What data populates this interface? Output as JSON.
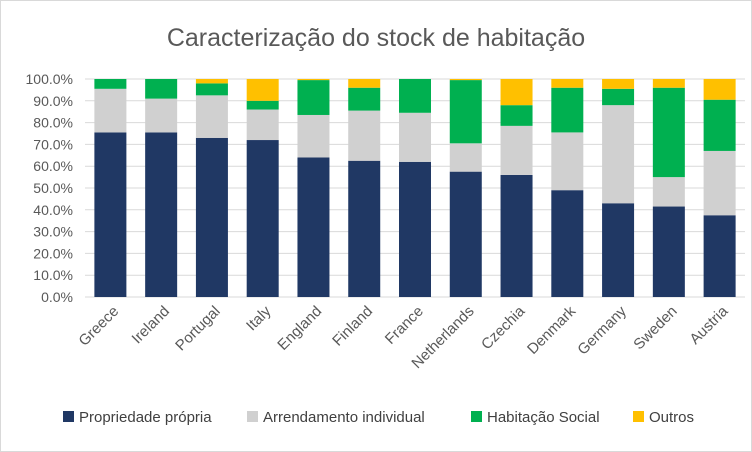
{
  "chart_data": {
    "type": "bar",
    "stacked": true,
    "title": "Caracterização do stock de habitação",
    "xlabel": "",
    "ylabel": "",
    "ylim": [
      0,
      100
    ],
    "y_ticks": [
      "0.0%",
      "10.0%",
      "20.0%",
      "30.0%",
      "40.0%",
      "50.0%",
      "60.0%",
      "70.0%",
      "80.0%",
      "90.0%",
      "100.0%"
    ],
    "grid": true,
    "legend_position": "bottom",
    "categories": [
      "Greece",
      "Ireland",
      "Portugal",
      "Italy",
      "England",
      "Finland",
      "France",
      "Netherlands",
      "Czechia",
      "Denmark",
      "Germany",
      "Sweden",
      "Austria"
    ],
    "series": [
      {
        "name": "Propriedade própria",
        "color": "#203864",
        "values": [
          75.5,
          75.5,
          73,
          72,
          64,
          62.5,
          62,
          57.5,
          56,
          49,
          43,
          41.5,
          37.5
        ]
      },
      {
        "name": "Arrendamento individual",
        "color": "#d0d0d0",
        "values": [
          20,
          15.5,
          19.5,
          14,
          19.5,
          23,
          22.5,
          13,
          22.5,
          26.5,
          45,
          13.5,
          29.5
        ]
      },
      {
        "name": "Habitação Social",
        "color": "#00b050",
        "values": [
          4.5,
          9,
          5.5,
          4,
          16,
          10.5,
          15.5,
          29,
          9.5,
          20.5,
          7.5,
          41,
          23.5
        ]
      },
      {
        "name": "Outros",
        "color": "#ffc000",
        "values": [
          0,
          0,
          2,
          10,
          0.5,
          4,
          0,
          0.5,
          12,
          4,
          4.5,
          4,
          9.5
        ]
      }
    ]
  }
}
